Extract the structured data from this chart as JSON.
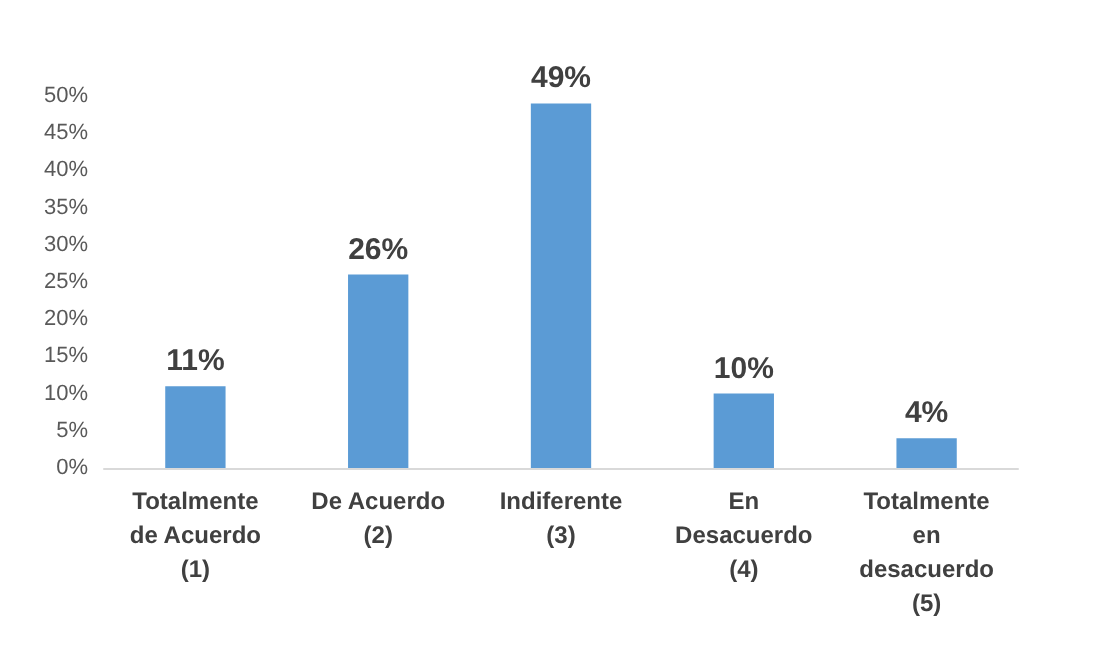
{
  "chart_data": {
    "type": "bar",
    "categories": [
      "Totalmente\nde Acuerdo\n(1)",
      "De Acuerdo\n(2)",
      "Indiferente\n(3)",
      "En\nDesacuerdo\n(4)",
      "Totalmente\nen\ndesacuerdo\n(5)"
    ],
    "values": [
      11,
      26,
      49,
      10,
      4
    ],
    "value_labels": [
      "11%",
      "26%",
      "49%",
      "10%",
      "4%"
    ],
    "color": "#5b9bd5",
    "ylim": [
      0,
      50
    ],
    "yticks": [
      {
        "value": 0,
        "label": "0%"
      },
      {
        "value": 5,
        "label": "5%"
      },
      {
        "value": 10,
        "label": "10%"
      },
      {
        "value": 15,
        "label": "15%"
      },
      {
        "value": 20,
        "label": "20%"
      },
      {
        "value": 25,
        "label": "25%"
      },
      {
        "value": 30,
        "label": "30%"
      },
      {
        "value": 35,
        "label": "35%"
      },
      {
        "value": 40,
        "label": "40%"
      },
      {
        "value": 45,
        "label": "45%"
      },
      {
        "value": 50,
        "label": "50%"
      }
    ],
    "grid": false
  }
}
